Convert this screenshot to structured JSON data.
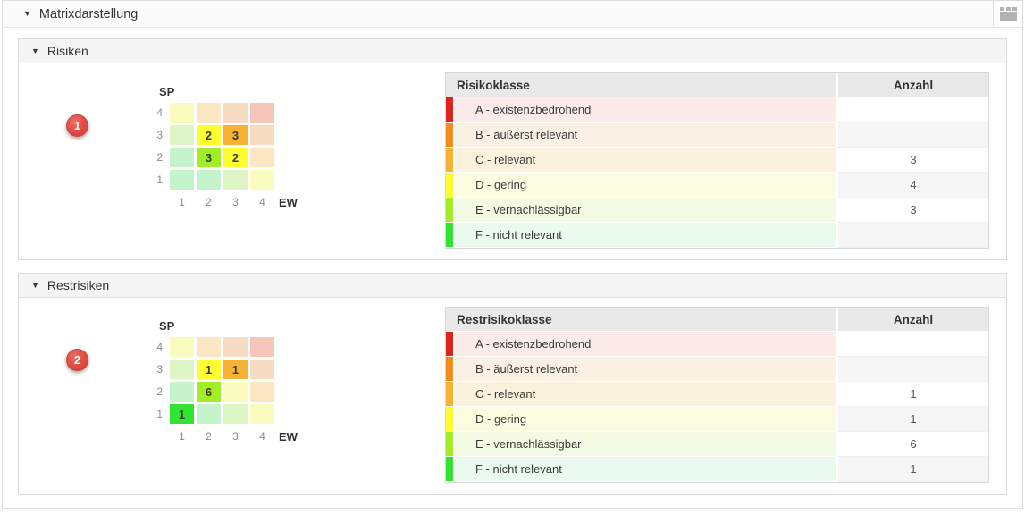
{
  "header": {
    "title": "Matrixdarstellung",
    "collapse_indicator": "▼",
    "layout_icon": "panel-layout-icon"
  },
  "colors": {
    "A": {
      "strong": "#e2231a",
      "pale": "#f7c6bb",
      "row": "#fcebe9"
    },
    "B": {
      "strong": "#f28c1e",
      "pale": "#f8dcc2",
      "row": "#faf0e3"
    },
    "C": {
      "strong": "#f8b233",
      "pale": "#fbe7c3",
      "row": "#fbf2dd"
    },
    "D": {
      "strong": "#fdfd30",
      "pale": "#fafcbe",
      "row": "#fcfce0"
    },
    "E": {
      "strong": "#a2ee26",
      "pale": "#def5c5",
      "row": "#f3fbe2"
    },
    "F": {
      "strong": "#30e431",
      "pale": "#c5f3cc",
      "row": "#eafaef"
    }
  },
  "matrix_axes": {
    "y_label": "SP",
    "x_label": "EW",
    "row_labels": [
      "4",
      "3",
      "2",
      "1"
    ],
    "col_labels": [
      "1",
      "2",
      "3",
      "4"
    ]
  },
  "class_grid": [
    [
      "D",
      "C",
      "B",
      "A"
    ],
    [
      "E",
      "D",
      "C",
      "B"
    ],
    [
      "F",
      "E",
      "D",
      "C"
    ],
    [
      "F",
      "F",
      "E",
      "D"
    ]
  ],
  "panels": [
    {
      "title": "Risiken",
      "collapse_indicator": "▼",
      "badge": "1",
      "counts_grid": [
        [
          "",
          "",
          "",
          ""
        ],
        [
          "",
          "2",
          "3",
          ""
        ],
        [
          "",
          "3",
          "2",
          ""
        ],
        [
          "",
          "",
          "",
          ""
        ]
      ],
      "table": {
        "class_header": "Risikoklasse",
        "count_header": "Anzahl",
        "rows": [
          {
            "cls": "A",
            "label": "A - existenzbedrohend",
            "count": ""
          },
          {
            "cls": "B",
            "label": "B - äußerst relevant",
            "count": ""
          },
          {
            "cls": "C",
            "label": "C - relevant",
            "count": "3"
          },
          {
            "cls": "D",
            "label": "D - gering",
            "count": "4"
          },
          {
            "cls": "E",
            "label": "E - vernachlässigbar",
            "count": "3"
          },
          {
            "cls": "F",
            "label": "F - nicht relevant",
            "count": ""
          }
        ]
      }
    },
    {
      "title": "Restrisiken",
      "collapse_indicator": "▼",
      "badge": "2",
      "counts_grid": [
        [
          "",
          "",
          "",
          ""
        ],
        [
          "",
          "1",
          "1",
          ""
        ],
        [
          "",
          "6",
          "",
          ""
        ],
        [
          "1",
          "",
          "",
          ""
        ]
      ],
      "table": {
        "class_header": "Restrisikoklasse",
        "count_header": "Anzahl",
        "rows": [
          {
            "cls": "A",
            "label": "A - existenzbedrohend",
            "count": ""
          },
          {
            "cls": "B",
            "label": "B - äußerst relevant",
            "count": ""
          },
          {
            "cls": "C",
            "label": "C - relevant",
            "count": "1"
          },
          {
            "cls": "D",
            "label": "D - gering",
            "count": "1"
          },
          {
            "cls": "E",
            "label": "E - vernachlässigbar",
            "count": "6"
          },
          {
            "cls": "F",
            "label": "F - nicht relevant",
            "count": "1"
          }
        ]
      }
    }
  ]
}
